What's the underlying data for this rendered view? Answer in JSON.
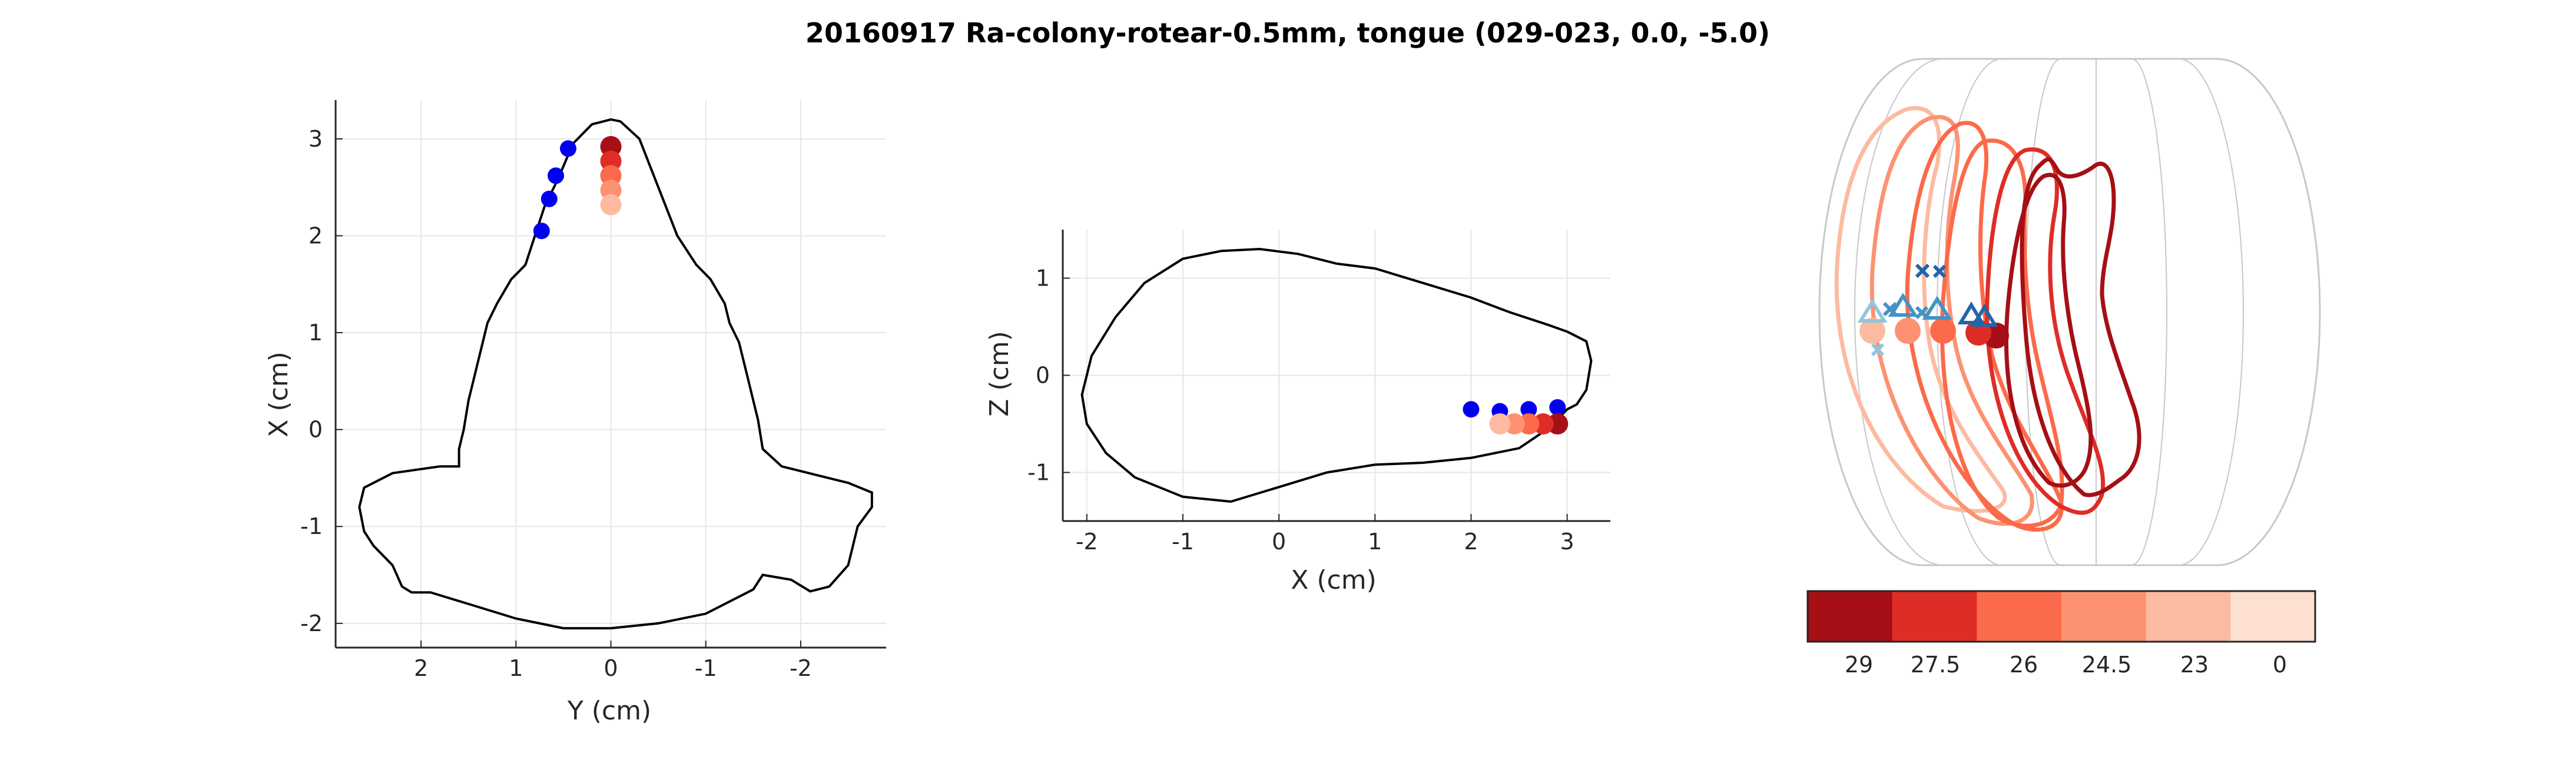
{
  "title": "20160917 Ra-colony-rotear-0.5mm, tongue (029-023,  0.0, -5.0)",
  "colors": {
    "outline": "#000000",
    "grid": "#e6e6e6",
    "axis": "#262626",
    "blue_marker": "#0000ee",
    "shade_0": "#a50f15",
    "shade_1": "#de2d26",
    "shade_2": "#fb6a4a",
    "shade_3": "#fc9272",
    "shade_4": "#fcbba1",
    "shade_5": "#fee0d2",
    "blue_dark": "#2166ac",
    "blue_mid": "#4393c3",
    "blue_light": "#92c5de",
    "wireframe": "#c8c8c8"
  },
  "chart_data": [
    {
      "type": "scatter",
      "name": "top-view",
      "xlabel": "Y (cm)",
      "ylabel": "X (cm)",
      "xlim": [
        2.9,
        -2.9
      ],
      "ylim": [
        -2.25,
        3.4
      ],
      "x_reversed": true,
      "xticks": [
        2,
        1,
        0,
        -1,
        -2
      ],
      "yticks": [
        -2,
        -1,
        0,
        1,
        2,
        3
      ],
      "grid": true,
      "outline": [
        [
          0.0,
          3.2
        ],
        [
          -0.1,
          3.18
        ],
        [
          -0.3,
          3.0
        ],
        [
          -0.5,
          2.5
        ],
        [
          -0.7,
          2.0
        ],
        [
          -0.9,
          1.7
        ],
        [
          -1.05,
          1.55
        ],
        [
          -1.2,
          1.3
        ],
        [
          -1.25,
          1.1
        ],
        [
          -1.35,
          0.9
        ],
        [
          -1.4,
          0.7
        ],
        [
          -1.45,
          0.5
        ],
        [
          -1.5,
          0.3
        ],
        [
          -1.55,
          0.1
        ],
        [
          -1.6,
          -0.2
        ],
        [
          -1.8,
          -0.38
        ],
        [
          -2.5,
          -0.55
        ],
        [
          -2.75,
          -0.65
        ],
        [
          -2.75,
          -0.8
        ],
        [
          -2.6,
          -1.0
        ],
        [
          -2.5,
          -1.4
        ],
        [
          -2.3,
          -1.62
        ],
        [
          -2.1,
          -1.67
        ],
        [
          -1.9,
          -1.55
        ],
        [
          -1.6,
          -1.5
        ],
        [
          -1.5,
          -1.65
        ],
        [
          -1.0,
          -1.9
        ],
        [
          -0.5,
          -2.0
        ],
        [
          0.0,
          -2.05
        ],
        [
          0.5,
          -2.05
        ],
        [
          1.0,
          -1.95
        ],
        [
          1.5,
          -1.8
        ],
        [
          1.9,
          -1.68
        ],
        [
          2.1,
          -1.68
        ],
        [
          2.2,
          -1.62
        ],
        [
          2.3,
          -1.4
        ],
        [
          2.5,
          -1.2
        ],
        [
          2.6,
          -1.05
        ],
        [
          2.65,
          -0.8
        ],
        [
          2.6,
          -0.6
        ],
        [
          2.3,
          -0.45
        ],
        [
          1.8,
          -0.38
        ],
        [
          1.6,
          -0.38
        ],
        [
          1.6,
          -0.2
        ],
        [
          1.55,
          0.0
        ],
        [
          1.5,
          0.3
        ],
        [
          1.45,
          0.5
        ],
        [
          1.4,
          0.7
        ],
        [
          1.35,
          0.9
        ],
        [
          1.3,
          1.1
        ],
        [
          1.2,
          1.3
        ],
        [
          1.05,
          1.55
        ],
        [
          0.9,
          1.7
        ],
        [
          0.8,
          2.0
        ],
        [
          0.7,
          2.3
        ],
        [
          0.55,
          2.6
        ],
        [
          0.4,
          2.95
        ],
        [
          0.2,
          3.15
        ],
        [
          0.0,
          3.2
        ]
      ],
      "blue_points": [
        [
          0.45,
          2.9
        ],
        [
          0.58,
          2.62
        ],
        [
          0.65,
          2.38
        ],
        [
          0.73,
          2.05
        ]
      ],
      "red_points": [
        [
          0.0,
          2.92
        ],
        [
          0.0,
          2.77
        ],
        [
          0.0,
          2.62
        ],
        [
          0.0,
          2.47
        ],
        [
          0.0,
          2.32
        ]
      ]
    },
    {
      "type": "scatter",
      "name": "side-view",
      "xlabel": "X (cm)",
      "ylabel": "Z (cm)",
      "xlim": [
        -2.25,
        3.45
      ],
      "ylim": [
        -1.5,
        1.5
      ],
      "xticks": [
        -2,
        -1,
        0,
        1,
        2,
        3
      ],
      "yticks": [
        -1,
        0,
        1
      ],
      "grid": true,
      "outline": [
        [
          -2.05,
          -0.2
        ],
        [
          -1.95,
          0.2
        ],
        [
          -1.7,
          0.6
        ],
        [
          -1.4,
          0.95
        ],
        [
          -1.0,
          1.2
        ],
        [
          -0.6,
          1.28
        ],
        [
          -0.2,
          1.3
        ],
        [
          0.2,
          1.25
        ],
        [
          0.6,
          1.15
        ],
        [
          1.0,
          1.1
        ],
        [
          1.5,
          0.95
        ],
        [
          2.0,
          0.8
        ],
        [
          2.4,
          0.65
        ],
        [
          2.8,
          0.52
        ],
        [
          3.0,
          0.45
        ],
        [
          3.2,
          0.35
        ],
        [
          3.25,
          0.15
        ],
        [
          3.2,
          -0.15
        ],
        [
          3.1,
          -0.3
        ],
        [
          3.0,
          -0.35
        ],
        [
          2.8,
          -0.55
        ],
        [
          2.5,
          -0.75
        ],
        [
          2.0,
          -0.85
        ],
        [
          1.5,
          -0.9
        ],
        [
          1.0,
          -0.92
        ],
        [
          0.5,
          -1.0
        ],
        [
          0.0,
          -1.15
        ],
        [
          -0.5,
          -1.3
        ],
        [
          -1.0,
          -1.25
        ],
        [
          -1.5,
          -1.05
        ],
        [
          -1.8,
          -0.8
        ],
        [
          -2.0,
          -0.5
        ],
        [
          -2.05,
          -0.2
        ]
      ],
      "blue_points": [
        [
          2.0,
          -0.35
        ],
        [
          2.3,
          -0.37
        ],
        [
          2.6,
          -0.35
        ],
        [
          2.9,
          -0.33
        ]
      ],
      "red_points": [
        [
          2.9,
          -0.5
        ],
        [
          2.75,
          -0.5
        ],
        [
          2.6,
          -0.5
        ],
        [
          2.45,
          -0.5
        ],
        [
          2.3,
          -0.5
        ]
      ]
    }
  ],
  "colorbar": {
    "labels": [
      "29",
      "27.5",
      "26",
      "24.5",
      "23",
      "0"
    ]
  }
}
